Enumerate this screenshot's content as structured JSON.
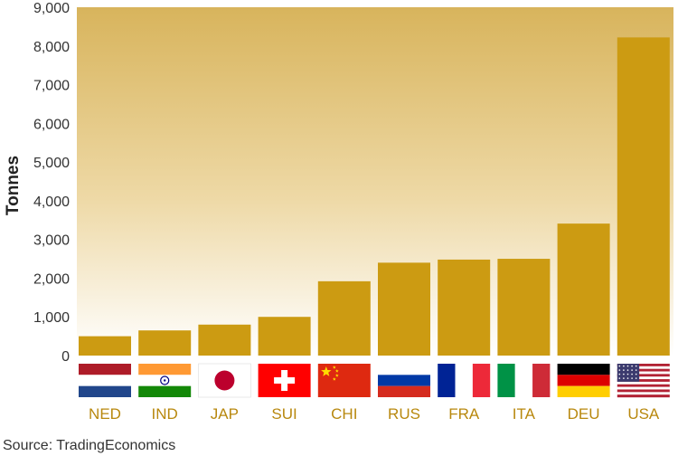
{
  "chart_data": {
    "type": "bar",
    "ylabel": "Tonnes",
    "ylim": [
      0,
      9000
    ],
    "yticks": [
      "0",
      "1,000",
      "2,000",
      "3,000",
      "4,000",
      "5,000",
      "6,000",
      "7,000",
      "8,000",
      "9,000"
    ],
    "categories": [
      "NED",
      "IND",
      "JAP",
      "SUI",
      "CHI",
      "RUS",
      "FRA",
      "ITA",
      "DEU",
      "USA"
    ],
    "values": [
      500,
      650,
      800,
      1000,
      1920,
      2400,
      2480,
      2500,
      3410,
      8220
    ],
    "grid": false,
    "background": "gradient",
    "source": "Source: TradingEconomics"
  },
  "colors": {
    "bar": "#CC9B12",
    "category_label": "#B8880E",
    "background_top": "#D8B45C",
    "background_bottom": "#FFFFFF"
  },
  "icons": [
    "netherlands-flag-icon",
    "india-flag-icon",
    "japan-flag-icon",
    "switzerland-flag-icon",
    "china-flag-icon",
    "russia-flag-icon",
    "france-flag-icon",
    "italy-flag-icon",
    "germany-flag-icon",
    "usa-flag-icon"
  ]
}
